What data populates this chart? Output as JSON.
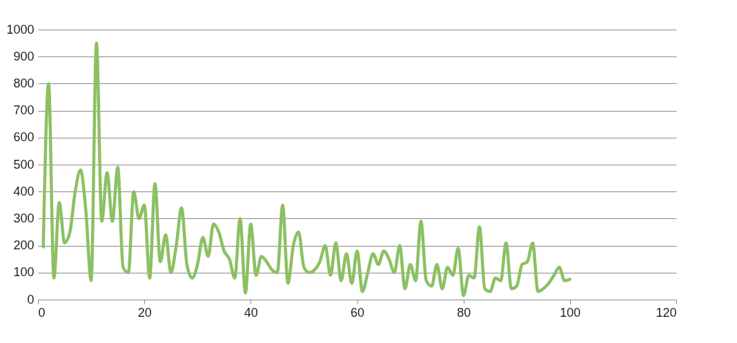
{
  "chart_data": {
    "type": "line",
    "x": [
      1,
      2,
      3,
      4,
      5,
      6,
      7,
      8,
      9,
      10,
      11,
      12,
      13,
      14,
      15,
      16,
      17,
      18,
      19,
      20,
      21,
      22,
      23,
      24,
      25,
      26,
      27,
      28,
      29,
      30,
      31,
      32,
      33,
      34,
      35,
      36,
      37,
      38,
      39,
      40,
      41,
      42,
      43,
      44,
      45,
      46,
      47,
      48,
      49,
      50,
      51,
      52,
      53,
      54,
      55,
      56,
      57,
      58,
      59,
      60,
      61,
      62,
      63,
      64,
      65,
      66,
      67,
      68,
      69,
      70,
      71,
      72,
      73,
      74,
      75,
      76,
      77,
      78,
      79,
      80,
      81,
      82,
      83,
      84,
      85,
      86,
      87,
      88,
      89,
      90,
      91,
      92,
      93,
      94,
      95,
      96,
      97,
      98,
      99,
      100
    ],
    "series": [
      {
        "color": "#8cc063",
        "values": [
          195,
          800,
          80,
          360,
          210,
          250,
          400,
          480,
          330,
          70,
          950,
          290,
          470,
          290,
          490,
          120,
          100,
          400,
          300,
          350,
          80,
          430,
          140,
          240,
          100,
          200,
          340,
          130,
          80,
          130,
          230,
          160,
          280,
          250,
          180,
          150,
          80,
          300,
          25,
          280,
          90,
          160,
          140,
          110,
          100,
          350,
          60,
          200,
          250,
          120,
          100,
          110,
          140,
          200,
          90,
          210,
          70,
          170,
          60,
          180,
          30,
          100,
          170,
          130,
          180,
          150,
          100,
          200,
          40,
          130,
          70,
          290,
          70,
          50,
          130,
          40,
          120,
          90,
          190,
          15,
          90,
          80,
          270,
          40,
          30,
          80,
          70,
          210,
          40,
          50,
          130,
          140,
          210,
          30,
          40,
          60,
          90,
          120,
          70,
          75
        ]
      }
    ],
    "xlim": [
      0,
      120
    ],
    "xticks": [
      0,
      20,
      40,
      60,
      80,
      100,
      120
    ],
    "ylim": [
      0,
      1000
    ],
    "yticks": [
      0,
      100,
      200,
      300,
      400,
      500,
      600,
      700,
      800,
      900,
      1000
    ],
    "grid": "y",
    "line_style": "solid",
    "marker": "none"
  }
}
